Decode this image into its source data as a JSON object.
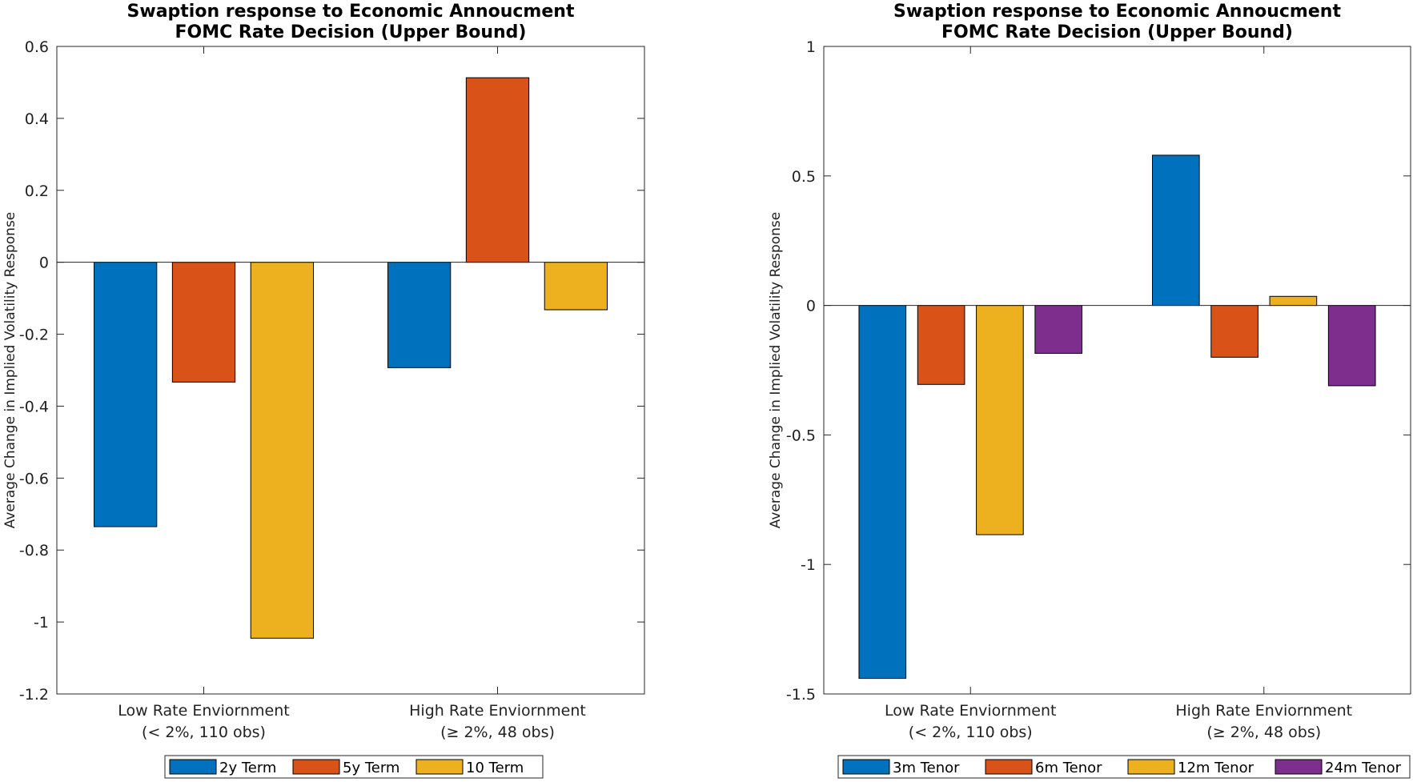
{
  "chart_data": [
    {
      "type": "bar",
      "title": "Swaption response to Economic Annoucment",
      "subtitle": "FOMC Rate Decision (Upper Bound)",
      "xlabel": "",
      "ylabel": "Average Change in Implied Volatility Response",
      "ylim": [
        -1.2,
        0.6
      ],
      "yticks": [
        -1.2,
        -1,
        -0.8,
        -0.6,
        -0.4,
        -0.2,
        0,
        0.2,
        0.4,
        0.6
      ],
      "ytick_labels": [
        "-1.2",
        "-1",
        "-0.8",
        "-0.6",
        "-0.4",
        "-0.2",
        "0",
        "0.2",
        "0.4",
        "0.6"
      ],
      "categories": [
        [
          "Low Rate Enviornment",
          "(< 2%, 110 obs)"
        ],
        [
          "High Rate Enviornment",
          "(≥ 2%, 48 obs)"
        ]
      ],
      "series": [
        {
          "name": "2y Term",
          "color": "#0072BD",
          "values": [
            -0.735,
            -0.293
          ]
        },
        {
          "name": "5y Term",
          "color": "#D95319",
          "values": [
            -0.333,
            0.513
          ]
        },
        {
          "name": "10 Term",
          "color": "#EDB120",
          "values": [
            -1.045,
            -0.132
          ]
        }
      ],
      "legend": "bottom",
      "grid": false
    },
    {
      "type": "bar",
      "title": "Swaption response to Economic Annoucment",
      "subtitle": "FOMC Rate Decision (Upper Bound)",
      "xlabel": "",
      "ylabel": "Average Change in Implied Volatility Response",
      "ylim": [
        -1.5,
        1
      ],
      "yticks": [
        -1.5,
        -1,
        -0.5,
        0,
        0.5,
        1
      ],
      "ytick_labels": [
        "-1.5",
        "-1",
        "-0.5",
        "0",
        "0.5",
        "1"
      ],
      "categories": [
        [
          "Low Rate Enviornment",
          "(< 2%, 110 obs)"
        ],
        [
          "High Rate Enviornment",
          "(≥ 2%, 48 obs)"
        ]
      ],
      "series": [
        {
          "name": "3m Tenor",
          "color": "#0072BD",
          "values": [
            -1.44,
            0.58
          ]
        },
        {
          "name": "6m Tenor",
          "color": "#D95319",
          "values": [
            -0.305,
            -0.2
          ]
        },
        {
          "name": "12m Tenor",
          "color": "#EDB120",
          "values": [
            -0.885,
            0.035
          ]
        },
        {
          "name": "24m Tenor",
          "color": "#7E2F8E",
          "values": [
            -0.185,
            -0.31
          ]
        }
      ],
      "legend": "bottom",
      "grid": false
    }
  ]
}
